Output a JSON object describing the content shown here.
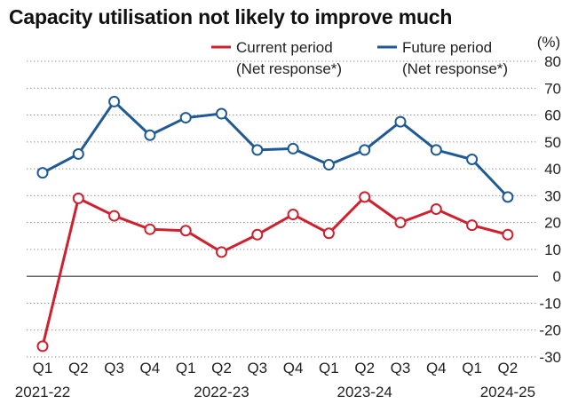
{
  "chart_data": {
    "type": "line",
    "title": "Capacity utilisation not likely to improve much",
    "unit_label": "(%)",
    "categories": [
      "Q1",
      "Q2",
      "Q3",
      "Q4",
      "Q1",
      "Q2",
      "Q3",
      "Q4",
      "Q1",
      "Q2",
      "Q3",
      "Q4",
      "Q1",
      "Q2"
    ],
    "year_labels": [
      {
        "index": 0,
        "label": "2021-22"
      },
      {
        "index": 5,
        "label": "2022-23"
      },
      {
        "index": 9,
        "label": "2023-24"
      },
      {
        "index": 13,
        "label": "2024-25"
      }
    ],
    "y_ticks": [
      80,
      70,
      60,
      50,
      40,
      30,
      20,
      10,
      0,
      -10,
      -20,
      -30
    ],
    "ylim": [
      -30,
      80
    ],
    "grid": "dotted-horizontal",
    "legend_position": "top",
    "series": [
      {
        "name": "Current period",
        "legend_sub": "(Net response*)",
        "color": "#d0202e",
        "values": [
          -26,
          29,
          22.5,
          17.5,
          17,
          9,
          15.5,
          23,
          16,
          29.5,
          20,
          25,
          19,
          15.5
        ]
      },
      {
        "name": "Future period",
        "legend_sub": "(Net response*)",
        "color": "#1f5a96",
        "values": [
          38.5,
          45.5,
          65,
          52.5,
          59,
          60.5,
          47,
          47.5,
          41.5,
          47,
          57.5,
          47,
          43.5,
          29.5
        ]
      }
    ]
  }
}
